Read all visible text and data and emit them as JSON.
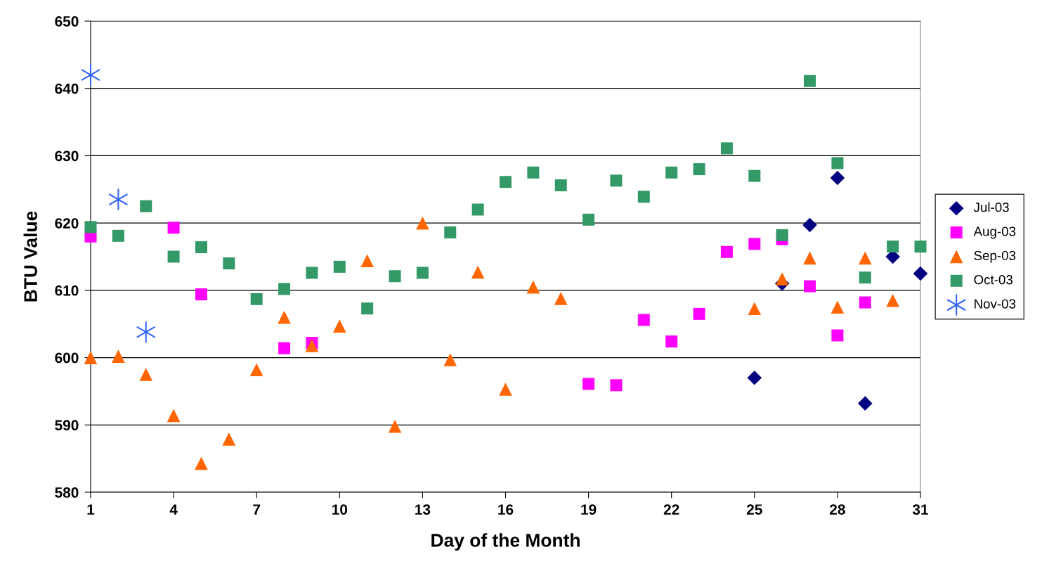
{
  "chart_data": {
    "type": "scatter",
    "xlabel": "Day of the Month",
    "ylabel": "BTU Value",
    "xlim": [
      1,
      31
    ],
    "xticks": [
      1,
      4,
      7,
      10,
      13,
      16,
      19,
      22,
      25,
      28,
      31
    ],
    "ylim": [
      580,
      650
    ],
    "yticks": [
      580,
      590,
      600,
      610,
      620,
      630,
      640,
      650
    ],
    "grid": "y",
    "legend": "right",
    "series": [
      {
        "name": "Jul-03",
        "color": "#000080",
        "marker": "diamond",
        "x": [
          25,
          26,
          27,
          28,
          29,
          30,
          31
        ],
        "values": [
          597,
          611,
          619.7,
          626.7,
          593.2,
          615,
          612.5
        ]
      },
      {
        "name": "Aug-03",
        "color": "#ff00ff",
        "marker": "square",
        "x": [
          1,
          4,
          5,
          8,
          9,
          19,
          20,
          21,
          22,
          23,
          24,
          25,
          26,
          27,
          28,
          29
        ],
        "values": [
          618,
          619.3,
          609.4,
          601.4,
          602.2,
          596.1,
          595.9,
          605.6,
          602.4,
          606.5,
          615.7,
          616.9,
          617.6,
          610.6,
          603.3,
          608.2
        ]
      },
      {
        "name": "Sep-03",
        "color": "#ff6600",
        "marker": "triangle",
        "x": [
          1,
          2,
          3,
          4,
          5,
          6,
          7,
          8,
          9,
          10,
          11,
          12,
          13,
          14,
          15,
          16,
          17,
          18,
          25,
          26,
          27,
          28,
          29,
          30
        ],
        "values": [
          600,
          600.2,
          597.5,
          591.4,
          584.3,
          587.9,
          598.2,
          606,
          601.8,
          604.7,
          614.4,
          589.8,
          620,
          599.7,
          612.7,
          595.3,
          610.5,
          608.8,
          607.3,
          611.7,
          614.8,
          607.5,
          614.8,
          608.5
        ]
      },
      {
        "name": "Oct-03",
        "color": "#339966",
        "marker": "square",
        "x": [
          1,
          2,
          3,
          4,
          5,
          6,
          7,
          8,
          9,
          10,
          11,
          12,
          13,
          14,
          15,
          16,
          17,
          18,
          19,
          20,
          21,
          22,
          23,
          24,
          25,
          26,
          27,
          28,
          29,
          30,
          31
        ],
        "values": [
          619.4,
          618.1,
          622.5,
          615,
          616.4,
          614,
          608.7,
          610.2,
          612.6,
          613.5,
          607.3,
          612.1,
          612.6,
          618.6,
          622,
          626.1,
          627.5,
          625.6,
          620.5,
          626.3,
          623.9,
          627.5,
          628,
          631.1,
          627,
          618.2,
          641.1,
          628.9,
          611.9,
          616.5,
          616.5
        ]
      },
      {
        "name": "Nov-03",
        "color": "#3366ff",
        "marker": "cross",
        "x": [
          1,
          2,
          3
        ],
        "values": [
          642,
          623.5,
          603.8
        ]
      }
    ]
  }
}
